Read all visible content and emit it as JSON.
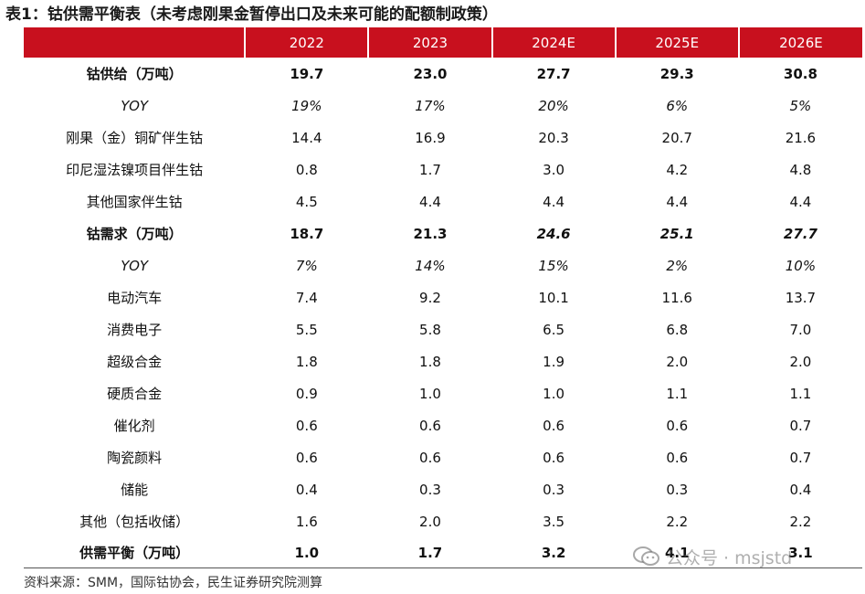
{
  "title": "表1：钴供需平衡表（未考虑刚果金暂停出口及未来可能的配额制政策）",
  "columns": [
    "",
    "2022",
    "2023",
    "2024E",
    "2025E",
    "2026E"
  ],
  "rows": [
    {
      "label": "钴供给（万吨）",
      "values": [
        "19.7",
        "23.0",
        "27.7",
        "29.3",
        "30.8"
      ]
    },
    {
      "label": "YOY",
      "values": [
        "19%",
        "17%",
        "20%",
        "6%",
        "5%"
      ]
    },
    {
      "label": "刚果（金）铜矿伴生钴",
      "values": [
        "14.4",
        "16.9",
        "20.3",
        "20.7",
        "21.6"
      ]
    },
    {
      "label": "印尼湿法镍项目伴生钴",
      "values": [
        "0.8",
        "1.7",
        "3.0",
        "4.2",
        "4.8"
      ]
    },
    {
      "label": "其他国家伴生钴",
      "values": [
        "4.5",
        "4.4",
        "4.4",
        "4.4",
        "4.4"
      ]
    },
    {
      "label": "钴需求（万吨）",
      "values": [
        "18.7",
        "21.3",
        "24.6",
        "25.1",
        "27.7"
      ]
    },
    {
      "label": "YOY",
      "values": [
        "7%",
        "14%",
        "15%",
        "2%",
        "10%"
      ]
    },
    {
      "label": "电动汽车",
      "values": [
        "7.4",
        "9.2",
        "10.1",
        "11.6",
        "13.7"
      ]
    },
    {
      "label": "消费电子",
      "values": [
        "5.5",
        "5.8",
        "6.5",
        "6.8",
        "7.0"
      ]
    },
    {
      "label": "超级合金",
      "values": [
        "1.8",
        "1.8",
        "1.9",
        "2.0",
        "2.0"
      ]
    },
    {
      "label": "硬质合金",
      "values": [
        "0.9",
        "1.0",
        "1.0",
        "1.1",
        "1.1"
      ]
    },
    {
      "label": "催化剂",
      "values": [
        "0.6",
        "0.6",
        "0.6",
        "0.6",
        "0.7"
      ]
    },
    {
      "label": "陶瓷颜料",
      "values": [
        "0.6",
        "0.6",
        "0.6",
        "0.6",
        "0.7"
      ]
    },
    {
      "label": "储能",
      "values": [
        "0.4",
        "0.3",
        "0.3",
        "0.3",
        "0.4"
      ]
    },
    {
      "label": "其他（包括收储）",
      "values": [
        "1.6",
        "2.0",
        "3.5",
        "2.2",
        "2.2"
      ]
    },
    {
      "label": "供需平衡（万吨）",
      "values": [
        "1.0",
        "1.7",
        "3.2",
        "4.1",
        "3.1"
      ]
    }
  ],
  "source": "资料来源：SMM，国际钴协会，民生证券研究院测算",
  "watermark": "公众号 · msjstd",
  "colors": {
    "header_bg": "#c8101e",
    "header_text": "#ffffff"
  }
}
